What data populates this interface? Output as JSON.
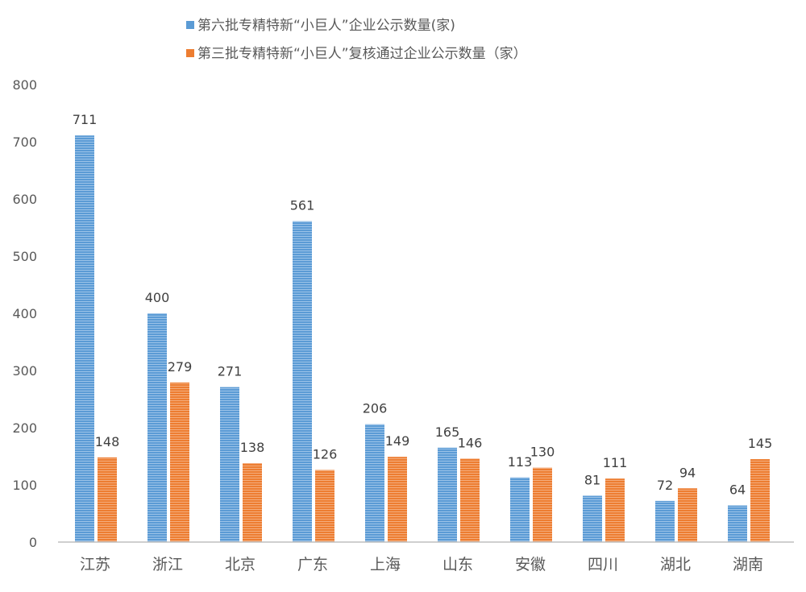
{
  "chart_data": {
    "type": "bar",
    "title": "",
    "xlabel": "",
    "ylabel": "",
    "ylim": [
      0,
      800
    ],
    "yticks": [
      0,
      100,
      200,
      300,
      400,
      500,
      600,
      700,
      800
    ],
    "grid": false,
    "legend_position": "top-center",
    "categories": [
      "江苏",
      "浙江",
      "北京",
      "广东",
      "上海",
      "山东",
      "安徽",
      "四川",
      "湖北",
      "湖南"
    ],
    "series": [
      {
        "name": "第六批专精特新“小巨人”企业公示数量(家)",
        "color": "#5b9bd5",
        "values": [
          711,
          400,
          271,
          561,
          206,
          165,
          113,
          81,
          72,
          64
        ]
      },
      {
        "name": "第三批专精特新“小巨人”复核通过企业公示数量（家）",
        "color": "#ed7d31",
        "values": [
          148,
          279,
          138,
          126,
          149,
          146,
          130,
          111,
          94,
          145
        ]
      }
    ]
  }
}
